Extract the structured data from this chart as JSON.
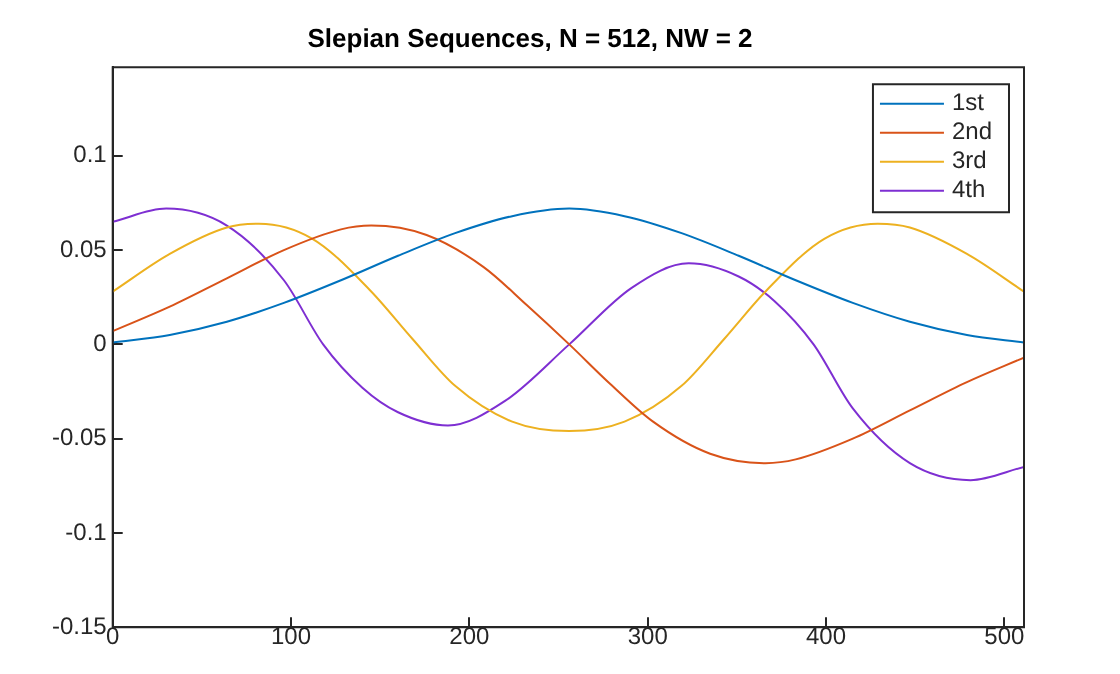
{
  "chart_data": {
    "type": "line",
    "title": "Slepian Sequences, N = 512, NW = 2",
    "xlim": [
      0,
      511
    ],
    "xticks": [
      0,
      100,
      200,
      300,
      400,
      500
    ],
    "ylim": [
      -0.15,
      0.147
    ],
    "yticks": [
      -0.15,
      -0.1,
      -0.05,
      0,
      0.05,
      0.1
    ],
    "grid": false,
    "legend": "top right",
    "marker": "none",
    "line_style": "solid",
    "series": [
      {
        "name": "1st",
        "color": "#0072bd",
        "x": [
          0,
          32,
          64,
          96,
          128,
          160,
          192,
          224,
          256,
          287,
          319,
          351,
          383,
          415,
          447,
          479,
          511
        ],
        "values": [
          0.001,
          0.005,
          0.012,
          0.022,
          0.034,
          0.047,
          0.059,
          0.068,
          0.072,
          0.068,
          0.059,
          0.047,
          0.034,
          0.022,
          0.012,
          0.005,
          0.001
        ]
      },
      {
        "name": "2nd",
        "color": "#d95319",
        "x": [
          0,
          32,
          64,
          96,
          128,
          145,
          176,
          208,
          232,
          256,
          279,
          303,
          335,
          366,
          383,
          415,
          447,
          479,
          511
        ],
        "values": [
          0.007,
          0.02,
          0.035,
          0.05,
          0.061,
          0.063,
          0.058,
          0.041,
          0.021,
          0,
          -0.021,
          -0.041,
          -0.058,
          -0.063,
          -0.061,
          -0.05,
          -0.035,
          -0.02,
          -0.007
        ]
      },
      {
        "name": "3rd",
        "color": "#edb120",
        "x": [
          0,
          32,
          64,
          82,
          112,
          144,
          168,
          192,
          224,
          256,
          287,
          319,
          343,
          367,
          399,
          429,
          447,
          479,
          511
        ],
        "values": [
          0.028,
          0.048,
          0.062,
          0.064,
          0.056,
          0.029,
          0.003,
          -0.022,
          -0.041,
          -0.046,
          -0.041,
          -0.022,
          0.003,
          0.029,
          0.056,
          0.064,
          0.062,
          0.048,
          0.028
        ]
      },
      {
        "name": "4th",
        "color": "#7e2fd2",
        "x": [
          0,
          30,
          64,
          96,
          118,
          140,
          160,
          188,
          220,
          256,
          291,
          323,
          351,
          371,
          393,
          415,
          447,
          481,
          511
        ],
        "values": [
          0.065,
          0.072,
          0.063,
          0.034,
          0,
          -0.023,
          -0.036,
          -0.043,
          -0.03,
          0,
          0.03,
          0.043,
          0.036,
          0.023,
          0,
          -0.034,
          -0.063,
          -0.072,
          -0.065
        ]
      }
    ]
  }
}
